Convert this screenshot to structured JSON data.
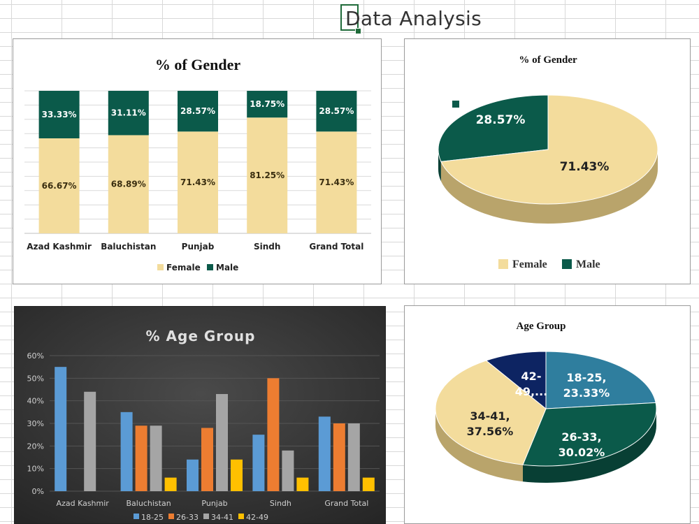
{
  "page": {
    "title": "Data Analysis"
  },
  "colors": {
    "female": "#f3dc9c",
    "male": "#0b5a4a",
    "age_18_25": "#2f7e9e",
    "age_26_33": "#0b5a4a",
    "age_34_41": "#f3dc9c",
    "age_42_49": "#0d2462",
    "dark_18_25": "#5b9bd5",
    "dark_26_33": "#ed7d31",
    "dark_34_41": "#a5a5a5",
    "dark_42_49": "#ffc000"
  },
  "chart_data": [
    {
      "type": "bar",
      "stacked": true,
      "title": "% of Gender",
      "categories": [
        "Azad Kashmir",
        "Baluchistan",
        "Punjab",
        "Sindh",
        "Grand Total"
      ],
      "series": [
        {
          "name": "Female",
          "values": [
            66.67,
            68.89,
            71.43,
            81.25,
            71.43
          ],
          "labels": [
            "66.67%",
            "68.89%",
            "71.43%",
            "81.25%",
            "71.43%"
          ]
        },
        {
          "name": "Male",
          "values": [
            33.33,
            31.11,
            28.57,
            18.75,
            28.57
          ],
          "labels": [
            "33.33%",
            "31.11%",
            "28.57%",
            "18.75%",
            "28.57%"
          ]
        }
      ],
      "ylim": [
        0,
        100
      ],
      "grid": true,
      "legend": "bottom"
    },
    {
      "type": "pie",
      "title": "% of Gender",
      "labels": [
        "Female",
        "Male"
      ],
      "values": [
        71.43,
        28.57
      ],
      "data_labels": [
        "71.43%",
        "28.57%"
      ],
      "legend": "bottom"
    },
    {
      "type": "bar",
      "title": "% Age Group",
      "categories": [
        "Azad Kashmir",
        "Baluchistan",
        "Punjab",
        "Sindh",
        "Grand Total"
      ],
      "series": [
        {
          "name": "18-25",
          "values": [
            55,
            35,
            14,
            25,
            33
          ]
        },
        {
          "name": "26-33",
          "values": [
            0,
            29,
            28,
            50,
            30
          ]
        },
        {
          "name": "34-41",
          "values": [
            44,
            29,
            43,
            18,
            30
          ]
        },
        {
          "name": "42-49",
          "values": [
            0,
            6,
            14,
            6,
            6
          ]
        }
      ],
      "yticks": [
        "0%",
        "10%",
        "20%",
        "30%",
        "40%",
        "50%",
        "60%"
      ],
      "ylim": [
        0,
        60
      ],
      "grid": true,
      "legend": "bottom"
    },
    {
      "type": "pie",
      "title": "Age Group",
      "labels": [
        "18-25",
        "26-33",
        "34-41",
        "42-49"
      ],
      "values": [
        23.33,
        30.02,
        37.56,
        9.09
      ],
      "data_labels": [
        [
          "18-25,",
          "23.33%"
        ],
        [
          "26-33,",
          "30.02%"
        ],
        [
          "34-41,",
          "37.56%"
        ],
        [
          "42-",
          "49,..."
        ]
      ],
      "legend": "none"
    }
  ]
}
